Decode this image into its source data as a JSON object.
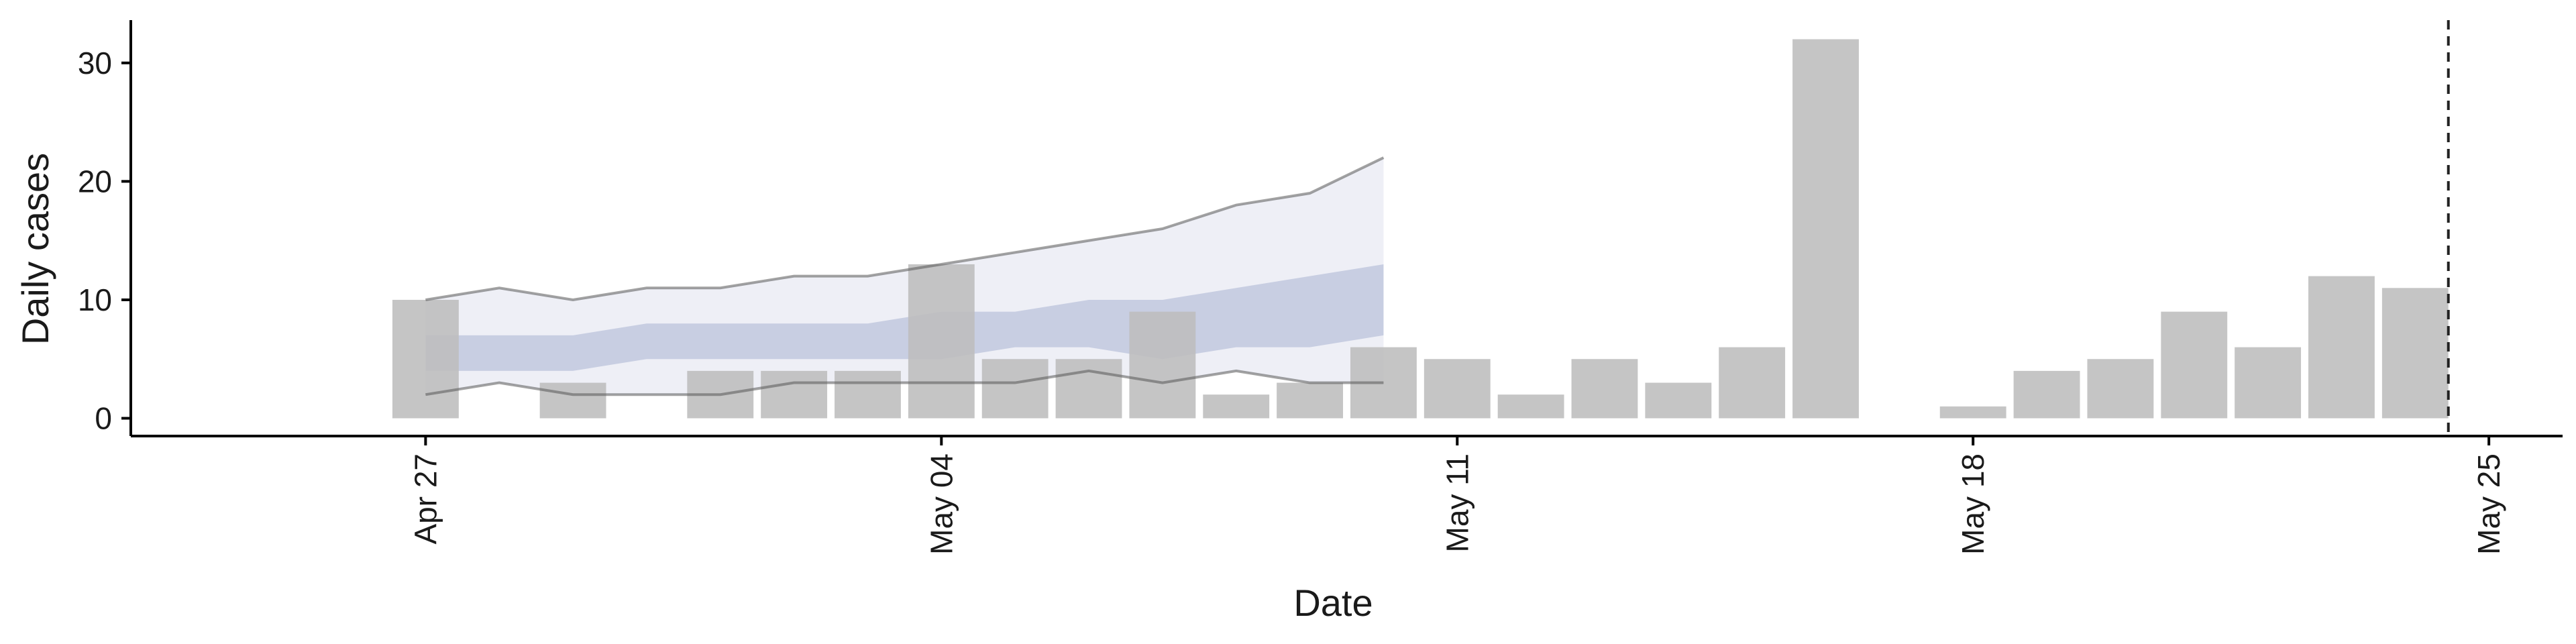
{
  "chart_data": {
    "type": "bar",
    "xlabel": "Date",
    "ylabel": "Daily cases",
    "x_domain": [
      "2020-04-23",
      "2020-05-26"
    ],
    "ylim": [
      -1.5,
      33.5
    ],
    "y_ticks": [
      0,
      10,
      20,
      30
    ],
    "x_ticks": [
      {
        "date": "2020-04-27",
        "label": "Apr 27"
      },
      {
        "date": "2020-05-04",
        "label": "May 04"
      },
      {
        "date": "2020-05-11",
        "label": "May 11"
      },
      {
        "date": "2020-05-18",
        "label": "May 18"
      },
      {
        "date": "2020-05-25",
        "label": "May 25"
      }
    ],
    "grid": false,
    "series": [
      {
        "type": "bar",
        "color": "#bdbdbd",
        "points": [
          {
            "date": "2020-04-27",
            "value": 10
          },
          {
            "date": "2020-04-28",
            "value": 0
          },
          {
            "date": "2020-04-29",
            "value": 3
          },
          {
            "date": "2020-04-30",
            "value": 0
          },
          {
            "date": "2020-05-01",
            "value": 4
          },
          {
            "date": "2020-05-02",
            "value": 4
          },
          {
            "date": "2020-05-03",
            "value": 4
          },
          {
            "date": "2020-05-04",
            "value": 13
          },
          {
            "date": "2020-05-05",
            "value": 5
          },
          {
            "date": "2020-05-06",
            "value": 5
          },
          {
            "date": "2020-05-07",
            "value": 9
          },
          {
            "date": "2020-05-08",
            "value": 2
          },
          {
            "date": "2020-05-09",
            "value": 3
          },
          {
            "date": "2020-05-10",
            "value": 6
          },
          {
            "date": "2020-05-11",
            "value": 5
          },
          {
            "date": "2020-05-12",
            "value": 2
          },
          {
            "date": "2020-05-13",
            "value": 5
          },
          {
            "date": "2020-05-14",
            "value": 3
          },
          {
            "date": "2020-05-15",
            "value": 6
          },
          {
            "date": "2020-05-16",
            "value": 32
          },
          {
            "date": "2020-05-17",
            "value": 0
          },
          {
            "date": "2020-05-18",
            "value": 1
          },
          {
            "date": "2020-05-19",
            "value": 4
          },
          {
            "date": "2020-05-20",
            "value": 5
          },
          {
            "date": "2020-05-21",
            "value": 9
          },
          {
            "date": "2020-05-22",
            "value": 6
          },
          {
            "date": "2020-05-23",
            "value": 12
          },
          {
            "date": "2020-05-24",
            "value": 11
          }
        ]
      },
      {
        "type": "band",
        "interval": "outer",
        "color": "#dde0ee",
        "points": [
          {
            "date": "2020-04-27",
            "lower": 2,
            "upper": 10
          },
          {
            "date": "2020-04-28",
            "lower": 3,
            "upper": 11
          },
          {
            "date": "2020-04-29",
            "lower": 2,
            "upper": 10
          },
          {
            "date": "2020-04-30",
            "lower": 2,
            "upper": 11
          },
          {
            "date": "2020-05-01",
            "lower": 2,
            "upper": 11
          },
          {
            "date": "2020-05-02",
            "lower": 3,
            "upper": 12
          },
          {
            "date": "2020-05-03",
            "lower": 3,
            "upper": 12
          },
          {
            "date": "2020-05-04",
            "lower": 3,
            "upper": 13
          },
          {
            "date": "2020-05-05",
            "lower": 3,
            "upper": 14
          },
          {
            "date": "2020-05-06",
            "lower": 4,
            "upper": 15
          },
          {
            "date": "2020-05-07",
            "lower": 3,
            "upper": 16
          },
          {
            "date": "2020-05-08",
            "lower": 4,
            "upper": 18
          },
          {
            "date": "2020-05-09",
            "lower": 3,
            "upper": 19
          },
          {
            "date": "2020-05-10",
            "lower": 3,
            "upper": 22
          }
        ]
      },
      {
        "type": "band",
        "interval": "inner",
        "color": "#b8c0da",
        "points": [
          {
            "date": "2020-04-27",
            "lower": 4,
            "upper": 7
          },
          {
            "date": "2020-04-28",
            "lower": 4,
            "upper": 7
          },
          {
            "date": "2020-04-29",
            "lower": 4,
            "upper": 7
          },
          {
            "date": "2020-04-30",
            "lower": 5,
            "upper": 8
          },
          {
            "date": "2020-05-01",
            "lower": 5,
            "upper": 8
          },
          {
            "date": "2020-05-02",
            "lower": 5,
            "upper": 8
          },
          {
            "date": "2020-05-03",
            "lower": 5,
            "upper": 8
          },
          {
            "date": "2020-05-04",
            "lower": 5,
            "upper": 9
          },
          {
            "date": "2020-05-05",
            "lower": 6,
            "upper": 9
          },
          {
            "date": "2020-05-06",
            "lower": 6,
            "upper": 10
          },
          {
            "date": "2020-05-07",
            "lower": 5,
            "upper": 10
          },
          {
            "date": "2020-05-08",
            "lower": 6,
            "upper": 11
          },
          {
            "date": "2020-05-09",
            "lower": 6,
            "upper": 12
          },
          {
            "date": "2020-05-10",
            "lower": 7,
            "upper": 13
          }
        ]
      }
    ],
    "reference_line": {
      "date": "2020-05-24",
      "style": "dashed",
      "color": "#222222"
    }
  }
}
